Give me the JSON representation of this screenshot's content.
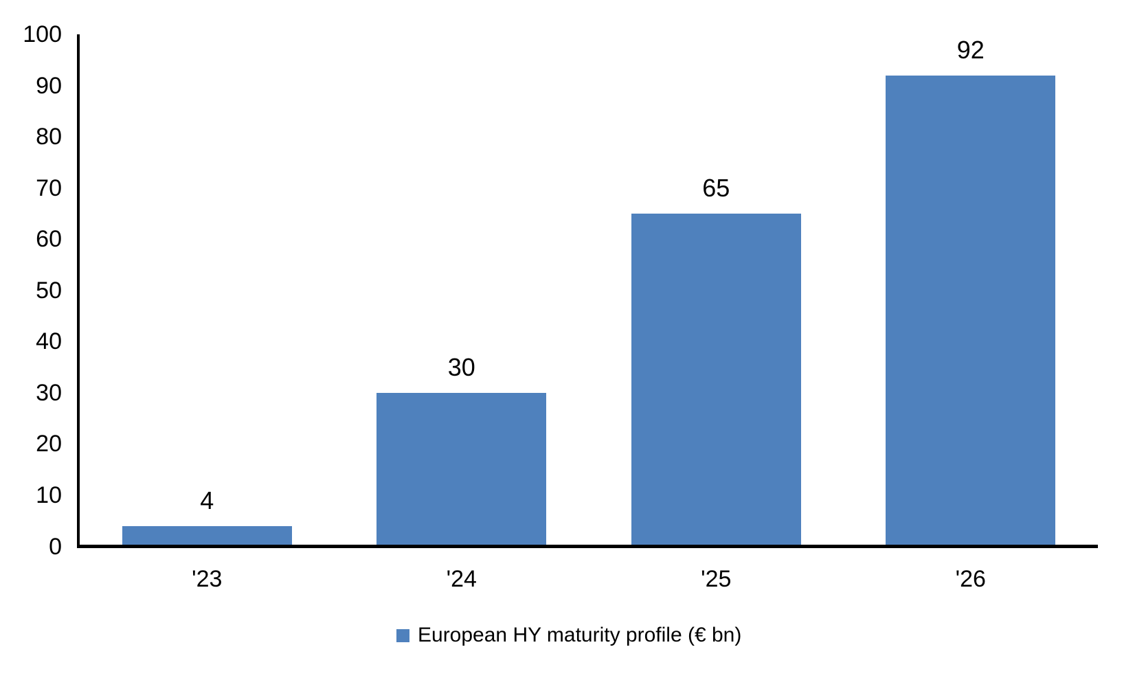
{
  "chart_data": {
    "type": "bar",
    "title": "",
    "categories": [
      "'23",
      "'24",
      "'25",
      "'26"
    ],
    "values": [
      4,
      30,
      65,
      92
    ],
    "data_labels": [
      "4",
      "30",
      "65",
      "92"
    ],
    "series_name": "European HY maturity profile (€ bn)",
    "xlabel": "",
    "ylabel": "",
    "ylim": [
      0,
      100
    ],
    "ytick_interval": 10,
    "yticks": [
      0,
      10,
      20,
      30,
      40,
      50,
      60,
      70,
      80,
      90,
      100
    ],
    "grid": false,
    "legend_position": "bottom-center",
    "colors": {
      "bar": "#4F81BD",
      "axis": "#000000",
      "text": "#000000",
      "background": "#FFFFFF"
    }
  }
}
